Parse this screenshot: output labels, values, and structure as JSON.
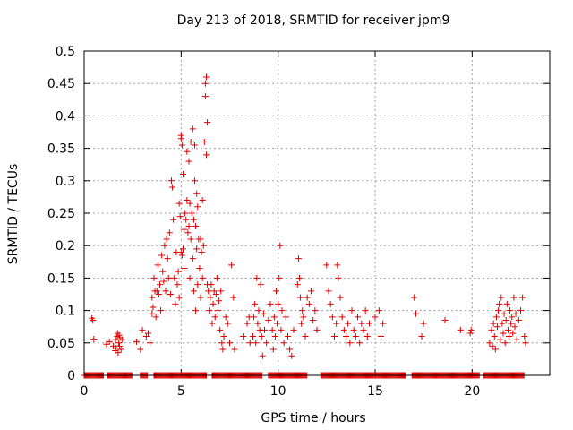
{
  "chart_data": {
    "type": "scatter",
    "title": "Day 213 of 2018, SRMTID for receiver jpm9",
    "xlabel": "GPS time / hours",
    "ylabel": "SRMTID / TECUs",
    "xlim": [
      0,
      24
    ],
    "ylim": [
      0,
      0.5
    ],
    "xticks": [
      0,
      5,
      10,
      15,
      20
    ],
    "yticks": [
      0,
      0.05,
      0.1,
      0.15,
      0.2,
      0.25,
      0.3,
      0.35,
      0.4,
      0.45,
      0.5
    ],
    "grid": true,
    "marker": "+",
    "color": "#e00000",
    "series": [
      {
        "name": "SRMTID",
        "points": [
          [
            0.4,
            0.088
          ],
          [
            0.45,
            0.085
          ],
          [
            0.5,
            0.056
          ],
          [
            1.15,
            0.048
          ],
          [
            1.3,
            0.052
          ],
          [
            1.5,
            0.045
          ],
          [
            1.6,
            0.038
          ],
          [
            1.62,
            0.055
          ],
          [
            1.65,
            0.042
          ],
          [
            1.7,
            0.06
          ],
          [
            1.72,
            0.065
          ],
          [
            1.75,
            0.035
          ],
          [
            1.78,
            0.05
          ],
          [
            1.8,
            0.062
          ],
          [
            1.82,
            0.045
          ],
          [
            1.85,
            0.058
          ],
          [
            1.9,
            0.04
          ],
          [
            1.95,
            0.055
          ],
          [
            2.7,
            0.052
          ],
          [
            2.9,
            0.04
          ],
          [
            3.0,
            0.07
          ],
          [
            3.2,
            0.06
          ],
          [
            3.3,
            0.065
          ],
          [
            3.4,
            0.05
          ],
          [
            3.5,
            0.095
          ],
          [
            3.5,
            0.12
          ],
          [
            3.55,
            0.105
          ],
          [
            3.6,
            0.15
          ],
          [
            3.65,
            0.13
          ],
          [
            3.7,
            0.09
          ],
          [
            3.75,
            0.13
          ],
          [
            3.8,
            0.17
          ],
          [
            3.85,
            0.125
          ],
          [
            3.9,
            0.14
          ],
          [
            3.95,
            0.1
          ],
          [
            4.0,
            0.185
          ],
          [
            4.05,
            0.16
          ],
          [
            4.1,
            0.145
          ],
          [
            4.15,
            0.2
          ],
          [
            4.2,
            0.13
          ],
          [
            4.25,
            0.21
          ],
          [
            4.3,
            0.18
          ],
          [
            4.35,
            0.15
          ],
          [
            4.4,
            0.22
          ],
          [
            4.45,
            0.125
          ],
          [
            4.5,
            0.3
          ],
          [
            4.55,
            0.29
          ],
          [
            4.6,
            0.24
          ],
          [
            4.65,
            0.15
          ],
          [
            4.7,
            0.11
          ],
          [
            4.75,
            0.19
          ],
          [
            4.8,
            0.14
          ],
          [
            4.85,
            0.16
          ],
          [
            4.9,
            0.12
          ],
          [
            4.9,
            0.265
          ],
          [
            4.95,
            0.245
          ],
          [
            5.0,
            0.365
          ],
          [
            5.0,
            0.37
          ],
          [
            5.0,
            0.19
          ],
          [
            5.05,
            0.355
          ],
          [
            5.05,
            0.185
          ],
          [
            5.1,
            0.31
          ],
          [
            5.1,
            0.195
          ],
          [
            5.15,
            0.225
          ],
          [
            5.15,
            0.165
          ],
          [
            5.2,
            0.25
          ],
          [
            5.25,
            0.24
          ],
          [
            5.3,
            0.345
          ],
          [
            5.3,
            0.27
          ],
          [
            5.35,
            0.22
          ],
          [
            5.4,
            0.33
          ],
          [
            5.4,
            0.23
          ],
          [
            5.45,
            0.15
          ],
          [
            5.45,
            0.265
          ],
          [
            5.5,
            0.36
          ],
          [
            5.5,
            0.21
          ],
          [
            5.55,
            0.25
          ],
          [
            5.6,
            0.38
          ],
          [
            5.6,
            0.18
          ],
          [
            5.65,
            0.13
          ],
          [
            5.65,
            0.24
          ],
          [
            5.7,
            0.3
          ],
          [
            5.7,
            0.355
          ],
          [
            5.75,
            0.23
          ],
          [
            5.75,
            0.1
          ],
          [
            5.8,
            0.28
          ],
          [
            5.8,
            0.195
          ],
          [
            5.85,
            0.26
          ],
          [
            5.85,
            0.14
          ],
          [
            5.9,
            0.21
          ],
          [
            5.95,
            0.165
          ],
          [
            6.0,
            0.21
          ],
          [
            6.0,
            0.12
          ],
          [
            6.05,
            0.19
          ],
          [
            6.1,
            0.15
          ],
          [
            6.1,
            0.27
          ],
          [
            6.15,
            0.2
          ],
          [
            6.2,
            0.36
          ],
          [
            6.25,
            0.45
          ],
          [
            6.25,
            0.43
          ],
          [
            6.3,
            0.46
          ],
          [
            6.3,
            0.34
          ],
          [
            6.35,
            0.39
          ],
          [
            6.35,
            0.14
          ],
          [
            6.4,
            0.13
          ],
          [
            6.45,
            0.1
          ],
          [
            6.5,
            0.12
          ],
          [
            6.55,
            0.14
          ],
          [
            6.6,
            0.08
          ],
          [
            6.65,
            0.11
          ],
          [
            6.7,
            0.13
          ],
          [
            6.75,
            0.09
          ],
          [
            6.8,
            0.125
          ],
          [
            6.85,
            0.15
          ],
          [
            6.9,
            0.1
          ],
          [
            6.95,
            0.115
          ],
          [
            7.0,
            0.07
          ],
          [
            7.05,
            0.13
          ],
          [
            7.1,
            0.05
          ],
          [
            7.15,
            0.04
          ],
          [
            7.2,
            0.06
          ],
          [
            7.3,
            0.09
          ],
          [
            7.4,
            0.08
          ],
          [
            7.5,
            0.05
          ],
          [
            7.6,
            0.17
          ],
          [
            7.7,
            0.12
          ],
          [
            7.75,
            0.04
          ],
          [
            8.2,
            0.06
          ],
          [
            8.4,
            0.08
          ],
          [
            8.5,
            0.09
          ],
          [
            8.55,
            0.05
          ],
          [
            8.7,
            0.06
          ],
          [
            8.75,
            0.09
          ],
          [
            8.8,
            0.11
          ],
          [
            8.85,
            0.05
          ],
          [
            8.9,
            0.15
          ],
          [
            8.95,
            0.08
          ],
          [
            9.0,
            0.1
          ],
          [
            9.05,
            0.07
          ],
          [
            9.1,
            0.14
          ],
          [
            9.15,
            0.06
          ],
          [
            9.2,
            0.03
          ],
          [
            9.25,
            0.095
          ],
          [
            9.3,
            0.07
          ],
          [
            9.4,
            0.05
          ],
          [
            9.5,
            0.085
          ],
          [
            9.6,
            0.11
          ],
          [
            9.7,
            0.07
          ],
          [
            9.75,
            0.04
          ],
          [
            9.8,
            0.09
          ],
          [
            9.85,
            0.06
          ],
          [
            9.9,
            0.13
          ],
          [
            9.95,
            0.08
          ],
          [
            10.0,
            0.11
          ],
          [
            10.05,
            0.15
          ],
          [
            10.1,
            0.2
          ],
          [
            10.15,
            0.07
          ],
          [
            10.2,
            0.1
          ],
          [
            10.3,
            0.05
          ],
          [
            10.4,
            0.09
          ],
          [
            10.5,
            0.06
          ],
          [
            10.6,
            0.04
          ],
          [
            10.7,
            0.03
          ],
          [
            10.8,
            0.07
          ],
          [
            11.0,
            0.14
          ],
          [
            11.05,
            0.18
          ],
          [
            11.1,
            0.15
          ],
          [
            11.15,
            0.12
          ],
          [
            11.2,
            0.08
          ],
          [
            11.25,
            0.1
          ],
          [
            11.3,
            0.09
          ],
          [
            11.4,
            0.06
          ],
          [
            11.5,
            0.12
          ],
          [
            11.6,
            0.11
          ],
          [
            11.7,
            0.13
          ],
          [
            11.8,
            0.085
          ],
          [
            11.9,
            0.1
          ],
          [
            12.0,
            0.07
          ],
          [
            12.5,
            0.17
          ],
          [
            12.6,
            0.13
          ],
          [
            12.7,
            0.11
          ],
          [
            12.8,
            0.09
          ],
          [
            12.9,
            0.06
          ],
          [
            13.0,
            0.08
          ],
          [
            13.05,
            0.17
          ],
          [
            13.1,
            0.15
          ],
          [
            13.2,
            0.12
          ],
          [
            13.3,
            0.09
          ],
          [
            13.4,
            0.07
          ],
          [
            13.5,
            0.06
          ],
          [
            13.6,
            0.08
          ],
          [
            13.7,
            0.05
          ],
          [
            13.8,
            0.1
          ],
          [
            13.9,
            0.07
          ],
          [
            14.0,
            0.06
          ],
          [
            14.1,
            0.09
          ],
          [
            14.2,
            0.05
          ],
          [
            14.3,
            0.08
          ],
          [
            14.4,
            0.07
          ],
          [
            14.5,
            0.1
          ],
          [
            14.6,
            0.06
          ],
          [
            14.7,
            0.08
          ],
          [
            15.0,
            0.09
          ],
          [
            15.2,
            0.1
          ],
          [
            15.3,
            0.06
          ],
          [
            15.4,
            0.08
          ],
          [
            17.0,
            0.12
          ],
          [
            17.1,
            0.095
          ],
          [
            17.4,
            0.06
          ],
          [
            17.5,
            0.08
          ],
          [
            18.6,
            0.085
          ],
          [
            19.4,
            0.07
          ],
          [
            19.9,
            0.065
          ],
          [
            19.95,
            0.07
          ],
          [
            20.9,
            0.05
          ],
          [
            21.0,
            0.07
          ],
          [
            21.05,
            0.045
          ],
          [
            21.1,
            0.08
          ],
          [
            21.15,
            0.06
          ],
          [
            21.2,
            0.04
          ],
          [
            21.25,
            0.09
          ],
          [
            21.3,
            0.075
          ],
          [
            21.35,
            0.1
          ],
          [
            21.4,
            0.11
          ],
          [
            21.45,
            0.055
          ],
          [
            21.5,
            0.12
          ],
          [
            21.55,
            0.08
          ],
          [
            21.6,
            0.065
          ],
          [
            21.65,
            0.095
          ],
          [
            21.7,
            0.05
          ],
          [
            21.75,
            0.085
          ],
          [
            21.8,
            0.11
          ],
          [
            21.85,
            0.07
          ],
          [
            21.9,
            0.06
          ],
          [
            21.95,
            0.1
          ],
          [
            22.0,
            0.08
          ],
          [
            22.05,
            0.09
          ],
          [
            22.1,
            0.065
          ],
          [
            22.15,
            0.12
          ],
          [
            22.2,
            0.075
          ],
          [
            22.25,
            0.095
          ],
          [
            22.3,
            0.055
          ],
          [
            22.4,
            0.085
          ],
          [
            22.5,
            0.1
          ],
          [
            22.6,
            0.12
          ],
          [
            22.7,
            0.06
          ],
          [
            22.75,
            0.05
          ]
        ]
      }
    ]
  }
}
